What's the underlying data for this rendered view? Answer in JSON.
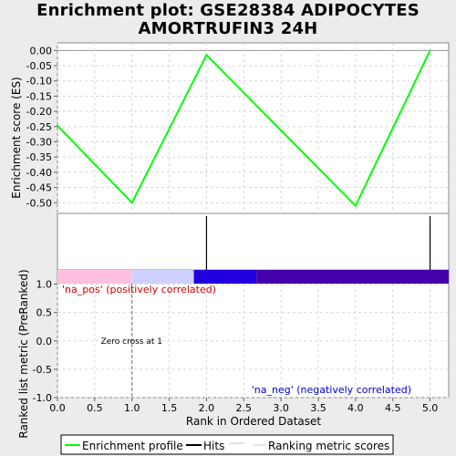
{
  "title_lines": [
    "Enrichment plot: GSE28384 ADIPOCYTES",
    "AMORTRUFIN3 24H"
  ],
  "chart_data": [
    {
      "type": "line",
      "name": "enrichment-score-panel",
      "ylabel": "Enrichment score (ES)",
      "ylim": [
        -0.535,
        0.025
      ],
      "yticks": [
        "0.00",
        "-0.05",
        "-0.10",
        "-0.15",
        "-0.20",
        "-0.25",
        "-0.30",
        "-0.35",
        "-0.40",
        "-0.45",
        "-0.50"
      ],
      "x": [
        0.0,
        1.0,
        2.0,
        4.0,
        5.0
      ],
      "y": [
        -0.247,
        -0.5,
        -0.015,
        -0.51,
        0.0
      ],
      "grid": true,
      "line_color": "#00ff00"
    },
    {
      "type": "hits",
      "name": "hits-panel",
      "x": [
        2.0,
        5.0
      ]
    },
    {
      "type": "line",
      "name": "ranked-metric-panel",
      "xlabel": "Rank in Ordered Dataset",
      "ylabel": "Ranked list metric (PreRanked)",
      "xlim": [
        0.0,
        5.25
      ],
      "ylim": [
        -1.0,
        1.25
      ],
      "xticks": [
        "0.0",
        "0.5",
        "1.0",
        "1.5",
        "2.0",
        "2.5",
        "3.0",
        "3.5",
        "4.0",
        "4.5",
        "5.0"
      ],
      "yticks": [
        "1.0",
        "0.5",
        "0.0",
        "-0.5",
        "-1.0"
      ],
      "values_x": [
        0,
        1,
        2,
        3,
        4,
        5
      ],
      "values_y": [
        0,
        0,
        0,
        0,
        0,
        0
      ],
      "zero_cross_label": "Zero cross at 1",
      "zero_cross_x": 1.0,
      "pos_label": "'na_pos' (positively correlated)",
      "neg_label": "'na_neg' (negatively correlated)",
      "pos_color": "#cc0000",
      "neg_color": "#0000cc",
      "color_bar": [
        {
          "from": 0.0,
          "to": 1.0,
          "color": "#ffc0e0"
        },
        {
          "from": 1.0,
          "to": 1.83,
          "color": "#d0d0ff"
        },
        {
          "from": 1.83,
          "to": 2.67,
          "color": "#2200dd"
        },
        {
          "from": 2.67,
          "to": 5.25,
          "color": "#4400aa"
        }
      ],
      "grid": true
    }
  ],
  "legend": {
    "items": [
      {
        "label": "Enrichment profile",
        "color": "#00ff00"
      },
      {
        "label": "Hits",
        "color": "#000000"
      },
      {
        "label": "Ranking metric scores",
        "color": "#c8c8c8"
      }
    ]
  }
}
